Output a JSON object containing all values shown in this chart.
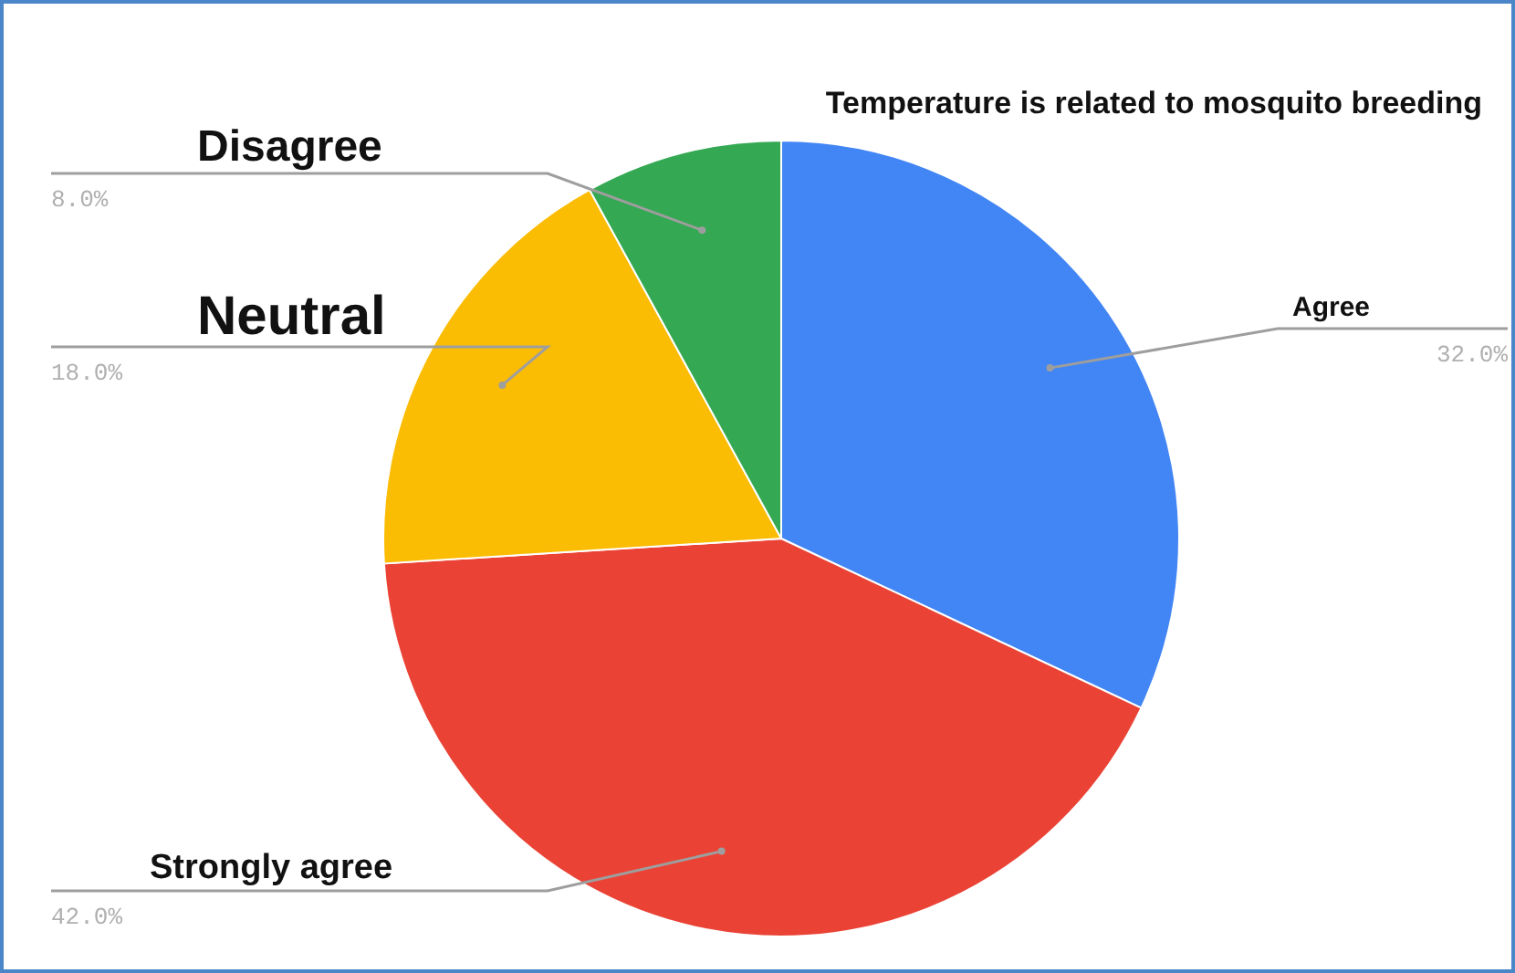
{
  "chart_data": {
    "type": "pie",
    "title": "Temperature is related to mosquito breeding",
    "categories": [
      "Agree",
      "Strongly agree",
      "Neutral",
      "Disagree"
    ],
    "values": [
      32,
      42,
      18,
      8
    ],
    "colors": [
      "#4285f4",
      "#ea4335",
      "#fbbc04",
      "#34a853"
    ],
    "value_labels": [
      "32.0%",
      "42.0%",
      "18.0%",
      "8.0%"
    ]
  }
}
